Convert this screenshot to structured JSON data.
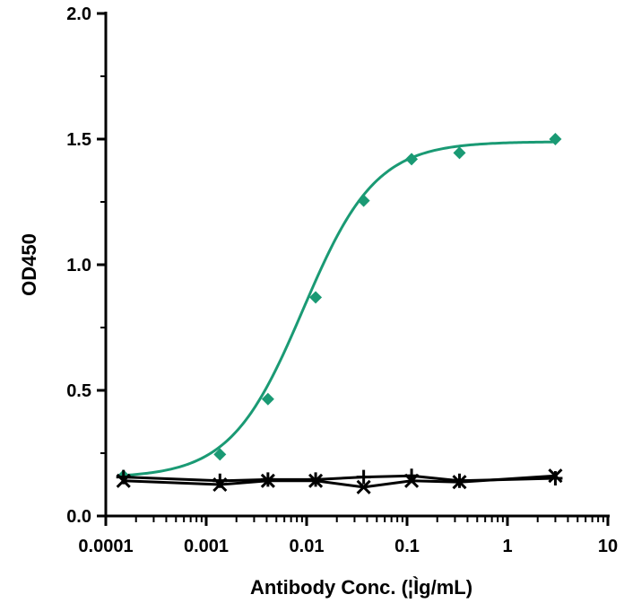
{
  "chart_data": {
    "type": "scatter",
    "title": "",
    "xlabel": "Antibody Conc. (¦Ìg/mL)",
    "ylabel": "OD450",
    "xscale": "log",
    "xlim": [
      0.0001,
      10
    ],
    "ylim": [
      0,
      2.0
    ],
    "x_ticks": [
      "0.0001",
      "0.001",
      "0.01",
      "0.1",
      "1",
      "10"
    ],
    "y_ticks": [
      "0.0",
      "0.5",
      "1.0",
      "1.5",
      "2.0"
    ],
    "grid": false,
    "legend": "none",
    "series": [
      {
        "color": "#1a9a74",
        "marker": "diamond",
        "fit": "sigmoidal",
        "x": [
          0.00015,
          0.00137,
          0.00412,
          0.0123,
          0.037,
          0.111,
          0.333,
          3.0
        ],
        "y": [
          0.16,
          0.245,
          0.465,
          0.87,
          1.255,
          1.42,
          1.445,
          1.5
        ]
      },
      {
        "color": "#000000",
        "marker": "cross",
        "x": [
          0.00015,
          0.00137,
          0.00412,
          0.0123,
          0.037,
          0.111,
          0.333,
          3.0
        ],
        "y": [
          0.14,
          0.125,
          0.14,
          0.14,
          0.115,
          0.14,
          0.135,
          0.16
        ]
      },
      {
        "color": "#000000",
        "marker": "plus",
        "x": [
          0.00015,
          0.00137,
          0.00412,
          0.0123,
          0.037,
          0.111,
          0.333,
          3.0
        ],
        "y": [
          0.155,
          0.14,
          0.145,
          0.145,
          0.155,
          0.16,
          0.14,
          0.15
        ]
      }
    ]
  }
}
